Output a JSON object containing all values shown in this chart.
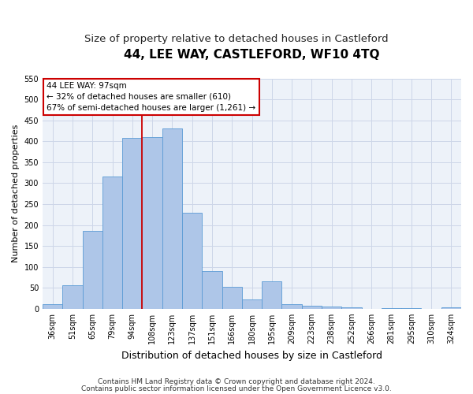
{
  "title": "44, LEE WAY, CASTLEFORD, WF10 4TQ",
  "subtitle": "Size of property relative to detached houses in Castleford",
  "xlabel": "Distribution of detached houses by size in Castleford",
  "ylabel": "Number of detached properties",
  "categories": [
    "36sqm",
    "51sqm",
    "65sqm",
    "79sqm",
    "94sqm",
    "108sqm",
    "123sqm",
    "137sqm",
    "151sqm",
    "166sqm",
    "180sqm",
    "195sqm",
    "209sqm",
    "223sqm",
    "238sqm",
    "252sqm",
    "266sqm",
    "281sqm",
    "295sqm",
    "310sqm",
    "324sqm"
  ],
  "values": [
    10,
    57,
    185,
    315,
    408,
    410,
    430,
    230,
    90,
    52,
    22,
    65,
    10,
    8,
    5,
    3,
    0,
    2,
    2,
    0,
    3
  ],
  "bar_color": "#aec6e8",
  "bar_edge_color": "#5b9bd5",
  "vline_x": 4.5,
  "vline_color": "#cc0000",
  "annotation_line1": "44 LEE WAY: 97sqm",
  "annotation_line2": "← 32% of detached houses are smaller (610)",
  "annotation_line3": "67% of semi-detached houses are larger (1,261) →",
  "annotation_box_color": "#ffffff",
  "annotation_box_edge": "#cc0000",
  "ylim": [
    0,
    550
  ],
  "yticks": [
    0,
    50,
    100,
    150,
    200,
    250,
    300,
    350,
    400,
    450,
    500,
    550
  ],
  "grid_color": "#cdd6e8",
  "background_color": "#edf2f9",
  "footer1": "Contains HM Land Registry data © Crown copyright and database right 2024.",
  "footer2": "Contains public sector information licensed under the Open Government Licence v3.0.",
  "title_fontsize": 11,
  "subtitle_fontsize": 9.5,
  "xlabel_fontsize": 9,
  "ylabel_fontsize": 8,
  "tick_fontsize": 7,
  "footer_fontsize": 6.5,
  "annotation_fontsize": 7.5
}
